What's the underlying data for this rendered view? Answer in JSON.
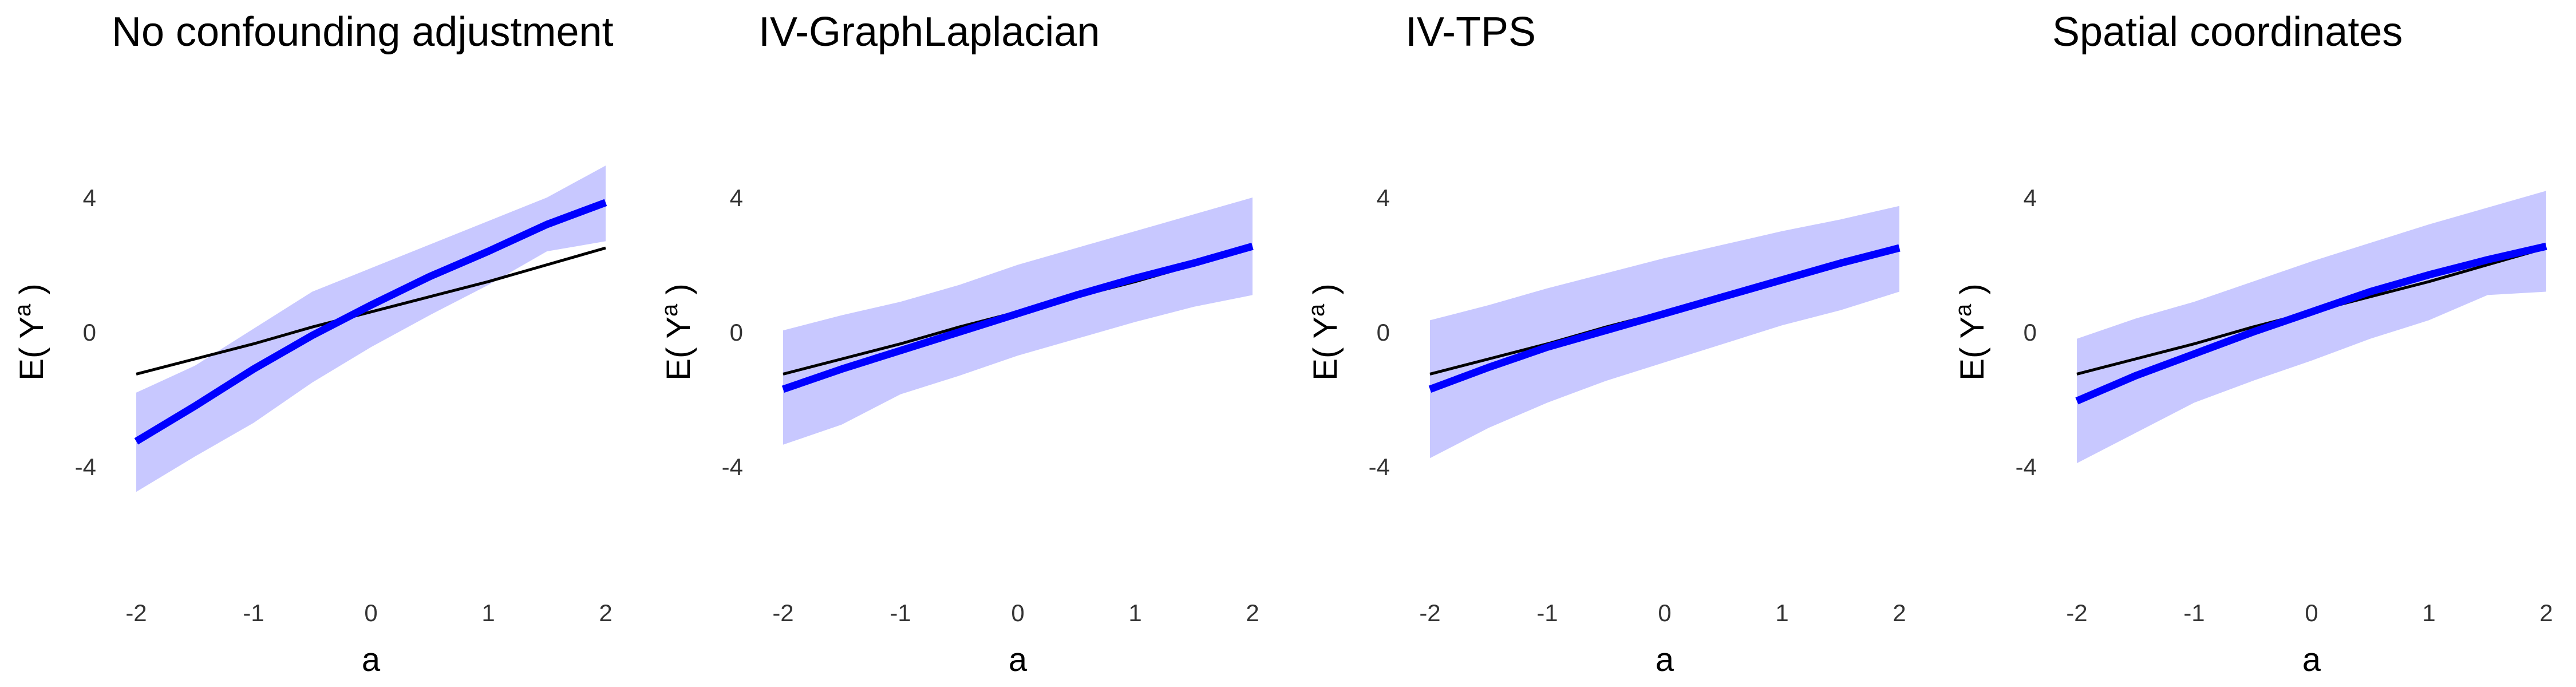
{
  "colors": {
    "estimate": "#0000ff",
    "band": "#c8c8ff",
    "truth": "#000000",
    "background": "#ffffff"
  },
  "chart_data": [
    {
      "type": "line",
      "title": "No confounding adjustment",
      "xlabel": "a",
      "ylabel": "E( Y^a )",
      "xlim": [
        -2,
        2
      ],
      "ylim": [
        -8,
        8
      ],
      "x_ticks": [
        "-2",
        "-1",
        "0",
        "1",
        "2"
      ],
      "y_ticks": [
        "-4",
        "0",
        "4"
      ],
      "x": [
        -2,
        -1.5,
        -1,
        -0.5,
        0,
        0.5,
        1,
        1.5,
        2
      ],
      "series": [
        {
          "role": "estimate",
          "values": [
            -3.25,
            -2.2,
            -1.1,
            -0.1,
            0.8,
            1.65,
            2.4,
            3.2,
            3.85
          ]
        },
        {
          "role": "band_upper",
          "values": [
            -1.8,
            -1.0,
            0.1,
            1.2,
            1.9,
            2.6,
            3.3,
            4.0,
            4.95
          ]
        },
        {
          "role": "band_lower",
          "values": [
            -4.75,
            -3.7,
            -2.7,
            -1.5,
            -0.45,
            0.5,
            1.4,
            2.4,
            2.7
          ]
        },
        {
          "role": "truth",
          "values": [
            -1.25,
            -0.8,
            -0.35,
            0.15,
            0.6,
            1.05,
            1.5,
            2.0,
            2.5
          ]
        }
      ]
    },
    {
      "type": "line",
      "title": "IV-GraphLaplacian",
      "xlabel": "a",
      "ylabel": "E( Y^a )",
      "xlim": [
        -2,
        2
      ],
      "ylim": [
        -8,
        8
      ],
      "x_ticks": [
        "-2",
        "-1",
        "0",
        "1",
        "2"
      ],
      "y_ticks": [
        "-4",
        "0",
        "4"
      ],
      "x": [
        -2,
        -1.5,
        -1,
        -0.5,
        0,
        0.5,
        1,
        1.5,
        2
      ],
      "series": [
        {
          "role": "estimate",
          "values": [
            -1.7,
            -1.1,
            -0.55,
            0.0,
            0.55,
            1.1,
            1.6,
            2.05,
            2.55
          ]
        },
        {
          "role": "band_upper",
          "values": [
            0.05,
            0.5,
            0.9,
            1.4,
            2.0,
            2.5,
            3.0,
            3.5,
            4.0
          ]
        },
        {
          "role": "band_lower",
          "values": [
            -3.35,
            -2.75,
            -1.85,
            -1.3,
            -0.7,
            -0.2,
            0.3,
            0.75,
            1.1
          ]
        },
        {
          "role": "truth",
          "values": [
            -1.25,
            -0.8,
            -0.35,
            0.15,
            0.6,
            1.05,
            1.5,
            2.0,
            2.5
          ]
        }
      ]
    },
    {
      "type": "line",
      "title": "IV-TPS",
      "xlabel": "a",
      "ylabel": "E( Y^a )",
      "xlim": [
        -2,
        2
      ],
      "ylim": [
        -8,
        8
      ],
      "x_ticks": [
        "-2",
        "-1",
        "0",
        "1",
        "2"
      ],
      "y_ticks": [
        "-4",
        "0",
        "4"
      ],
      "x": [
        -2,
        -1.5,
        -1,
        -0.5,
        0,
        0.5,
        1,
        1.5,
        2
      ],
      "series": [
        {
          "role": "estimate",
          "values": [
            -1.7,
            -1.05,
            -0.45,
            0.05,
            0.55,
            1.05,
            1.55,
            2.05,
            2.5
          ]
        },
        {
          "role": "band_upper",
          "values": [
            0.35,
            0.8,
            1.3,
            1.75,
            2.2,
            2.6,
            3.0,
            3.35,
            3.75
          ]
        },
        {
          "role": "band_lower",
          "values": [
            -3.75,
            -2.85,
            -2.1,
            -1.45,
            -0.9,
            -0.35,
            0.2,
            0.65,
            1.2
          ]
        },
        {
          "role": "truth",
          "values": [
            -1.25,
            -0.8,
            -0.35,
            0.15,
            0.6,
            1.05,
            1.5,
            2.0,
            2.5
          ]
        }
      ]
    },
    {
      "type": "line",
      "title": "Spatial coordinates",
      "xlabel": "a",
      "ylabel": "E( Y^a )",
      "xlim": [
        -2,
        2
      ],
      "ylim": [
        -8,
        8
      ],
      "x_ticks": [
        "-2",
        "-1",
        "0",
        "1",
        "2"
      ],
      "y_ticks": [
        "-4",
        "0",
        "4"
      ],
      "x": [
        -2,
        -1.5,
        -1,
        -0.5,
        0,
        0.5,
        1,
        1.5,
        2
      ],
      "series": [
        {
          "role": "estimate",
          "values": [
            -2.05,
            -1.3,
            -0.65,
            0.0,
            0.6,
            1.2,
            1.7,
            2.15,
            2.55
          ]
        },
        {
          "role": "band_upper",
          "values": [
            -0.2,
            0.4,
            0.9,
            1.5,
            2.1,
            2.65,
            3.2,
            3.7,
            4.2
          ]
        },
        {
          "role": "band_lower",
          "values": [
            -3.9,
            -3.0,
            -2.1,
            -1.45,
            -0.85,
            -0.2,
            0.35,
            1.1,
            1.2
          ]
        },
        {
          "role": "truth",
          "values": [
            -1.25,
            -0.8,
            -0.35,
            0.15,
            0.6,
            1.05,
            1.5,
            2.0,
            2.5
          ]
        }
      ]
    }
  ]
}
